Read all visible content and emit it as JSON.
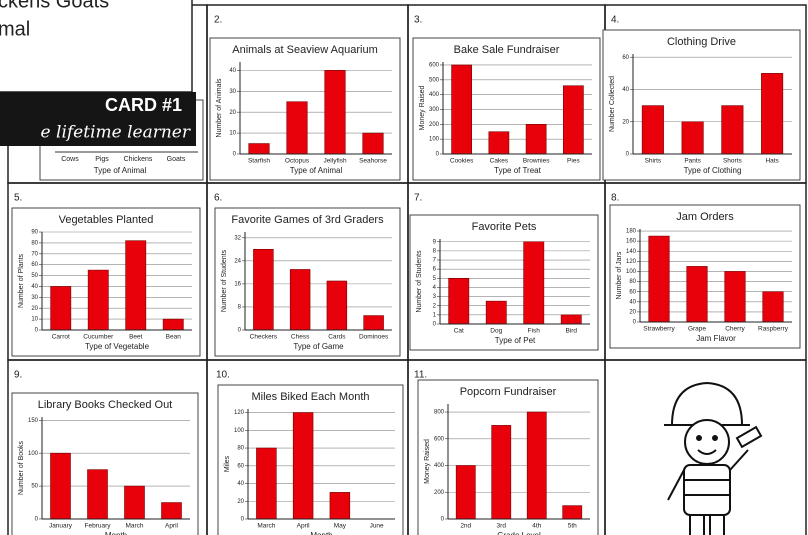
{
  "card": {
    "lines": [
      "ckens    Goats",
      "mal"
    ],
    "title": "CARD #1",
    "subtitle": "e lifetime learner",
    "chart": {
      "categories": [
        "Cows",
        "Pigs",
        "Chickens",
        "Goats"
      ],
      "xlabel": "Type of Animal"
    }
  },
  "chart_data": [
    {
      "type": "bar",
      "label": "2.",
      "title": "Animals at Seaview Aquarium",
      "ylabel": "Number of Animals",
      "xlabel": "Type of Animal",
      "categories": [
        "Starfish",
        "Octopus",
        "Jellyfish",
        "Seahorse"
      ],
      "values": [
        5,
        25,
        40,
        10
      ],
      "color": "#e8000b",
      "ylim": [
        0,
        44
      ],
      "yticks": [
        0,
        10,
        20,
        30,
        40
      ],
      "grid": true
    },
    {
      "type": "bar",
      "label": "3.",
      "title": "Bake Sale Fundraiser",
      "ylabel": "Money Raised",
      "xlabel": "Type of Treat",
      "categories": [
        "Cookies",
        "Cakes",
        "Brownies",
        "Pies"
      ],
      "values": [
        600,
        150,
        200,
        460
      ],
      "color": "#e8000b",
      "ylim": [
        0,
        620
      ],
      "yticks": [
        0,
        100,
        200,
        300,
        400,
        500,
        600
      ],
      "grid": true
    },
    {
      "type": "bar",
      "label": "4.",
      "title": "Clothing Drive",
      "ylabel": "Number Collected",
      "xlabel": "Type of Clothing",
      "categories": [
        "Shirts",
        "Pants",
        "Shorts",
        "Hats"
      ],
      "values": [
        30,
        20,
        30,
        50
      ],
      "color": "#e8000b",
      "ylim": [
        0,
        62
      ],
      "yticks": [
        0,
        20,
        40,
        60
      ],
      "grid": true
    },
    {
      "type": "bar",
      "label": "5.",
      "title": "Vegetables Planted",
      "ylabel": "Number of Plants",
      "xlabel": "Type of Vegetable",
      "categories": [
        "Carrot",
        "Cucumber",
        "Beet",
        "Bean"
      ],
      "values": [
        40,
        55,
        82,
        10
      ],
      "color": "#e8000b",
      "ylim": [
        0,
        90
      ],
      "yticks": [
        0,
        10,
        20,
        30,
        40,
        50,
        60,
        70,
        80,
        90
      ],
      "grid": true
    },
    {
      "type": "bar",
      "label": "6.",
      "title": "Favorite Games of 3rd Graders",
      "ylabel": "Number of Students",
      "xlabel": "Type of Game",
      "categories": [
        "Checkers",
        "Chess",
        "Cards",
        "Dominoes"
      ],
      "values": [
        28,
        21,
        17,
        5
      ],
      "color": "#e8000b",
      "ylim": [
        0,
        34
      ],
      "yticks": [
        0,
        8,
        16,
        24,
        32
      ],
      "grid": true
    },
    {
      "type": "bar",
      "label": "7.",
      "title": "Favorite Pets",
      "ylabel": "Number of Students",
      "xlabel": "Type of Pet",
      "categories": [
        "Cat",
        "Dog",
        "Fish",
        "Bird"
      ],
      "values": [
        5,
        2.5,
        9,
        1
      ],
      "color": "#e8000b",
      "ylim": [
        0,
        9.3
      ],
      "yticks": [
        0,
        1,
        2,
        3,
        4,
        5,
        6,
        7,
        8,
        9
      ],
      "grid": true
    },
    {
      "type": "bar",
      "label": "8.",
      "title": "Jam Orders",
      "ylabel": "Number of Jars",
      "xlabel": "Jam Flavor",
      "categories": [
        "Strawberry",
        "Grape",
        "Cherry",
        "Raspberry"
      ],
      "values": [
        170,
        110,
        100,
        60
      ],
      "color": "#e8000b",
      "ylim": [
        0,
        184
      ],
      "yticks": [
        0,
        20,
        40,
        60,
        80,
        100,
        120,
        140,
        160,
        180
      ],
      "grid": true
    },
    {
      "type": "bar",
      "label": "9.",
      "title": "Library Books Checked Out",
      "ylabel": "Number of Books",
      "xlabel": "Month",
      "categories": [
        "January",
        "February",
        "March",
        "April"
      ],
      "values": [
        100,
        75,
        50,
        25
      ],
      "color": "#e8000b",
      "ylim": [
        0,
        155
      ],
      "yticks": [
        0,
        50,
        100,
        150
      ],
      "grid": true
    },
    {
      "type": "bar",
      "label": "10.",
      "title": "Miles Biked Each Month",
      "ylabel": "Miles",
      "xlabel": "Month",
      "categories": [
        "March",
        "April",
        "May",
        "June"
      ],
      "values": [
        80,
        120,
        30,
        0
      ],
      "color": "#e8000b",
      "ylim": [
        0,
        124
      ],
      "yticks": [
        0,
        20,
        40,
        60,
        80,
        100,
        120
      ],
      "grid": true
    },
    {
      "type": "bar",
      "label": "11.",
      "title": "Popcorn Fundraiser",
      "ylabel": "Money Raised",
      "xlabel": "Grade Level",
      "categories": [
        "2nd",
        "3rd",
        "4th",
        "5th"
      ],
      "values": [
        400,
        700,
        800,
        100
      ],
      "color": "#e8000b",
      "ylim": [
        0,
        860
      ],
      "yticks": [
        0,
        200,
        400,
        600,
        800
      ],
      "grid": true
    }
  ]
}
